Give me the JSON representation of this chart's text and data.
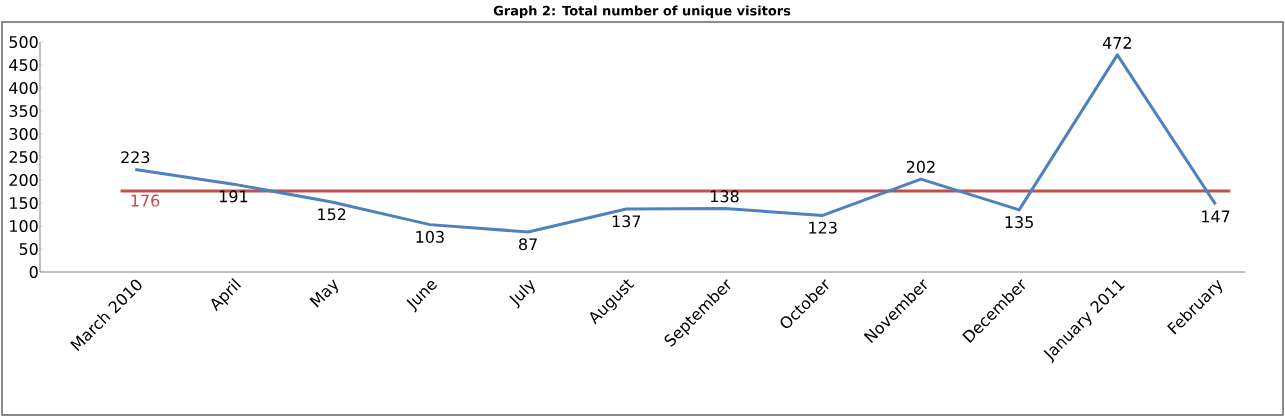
{
  "chart_data": {
    "type": "line",
    "title": "Graph 2: Total number of unique visitors",
    "categories": [
      "March 2010",
      "April",
      "May",
      "June",
      "July",
      "August",
      "September",
      "October",
      "November",
      "December",
      "January 2011",
      "February"
    ],
    "series": [
      {
        "color": "#4f81bd",
        "values": [
          223,
          191,
          152,
          103,
          87,
          137,
          138,
          123,
          202,
          135,
          472,
          147
        ]
      }
    ],
    "ref_lines": [
      {
        "axis": "y",
        "value": 176,
        "label": "176",
        "color": "#c0504d"
      }
    ],
    "ylim": [
      0,
      500
    ],
    "yticks": [
      0,
      50,
      100,
      150,
      200,
      250,
      300,
      350,
      400,
      450,
      500
    ],
    "data_labels": true,
    "grid": false,
    "marker": "none",
    "line_style": "solid"
  }
}
